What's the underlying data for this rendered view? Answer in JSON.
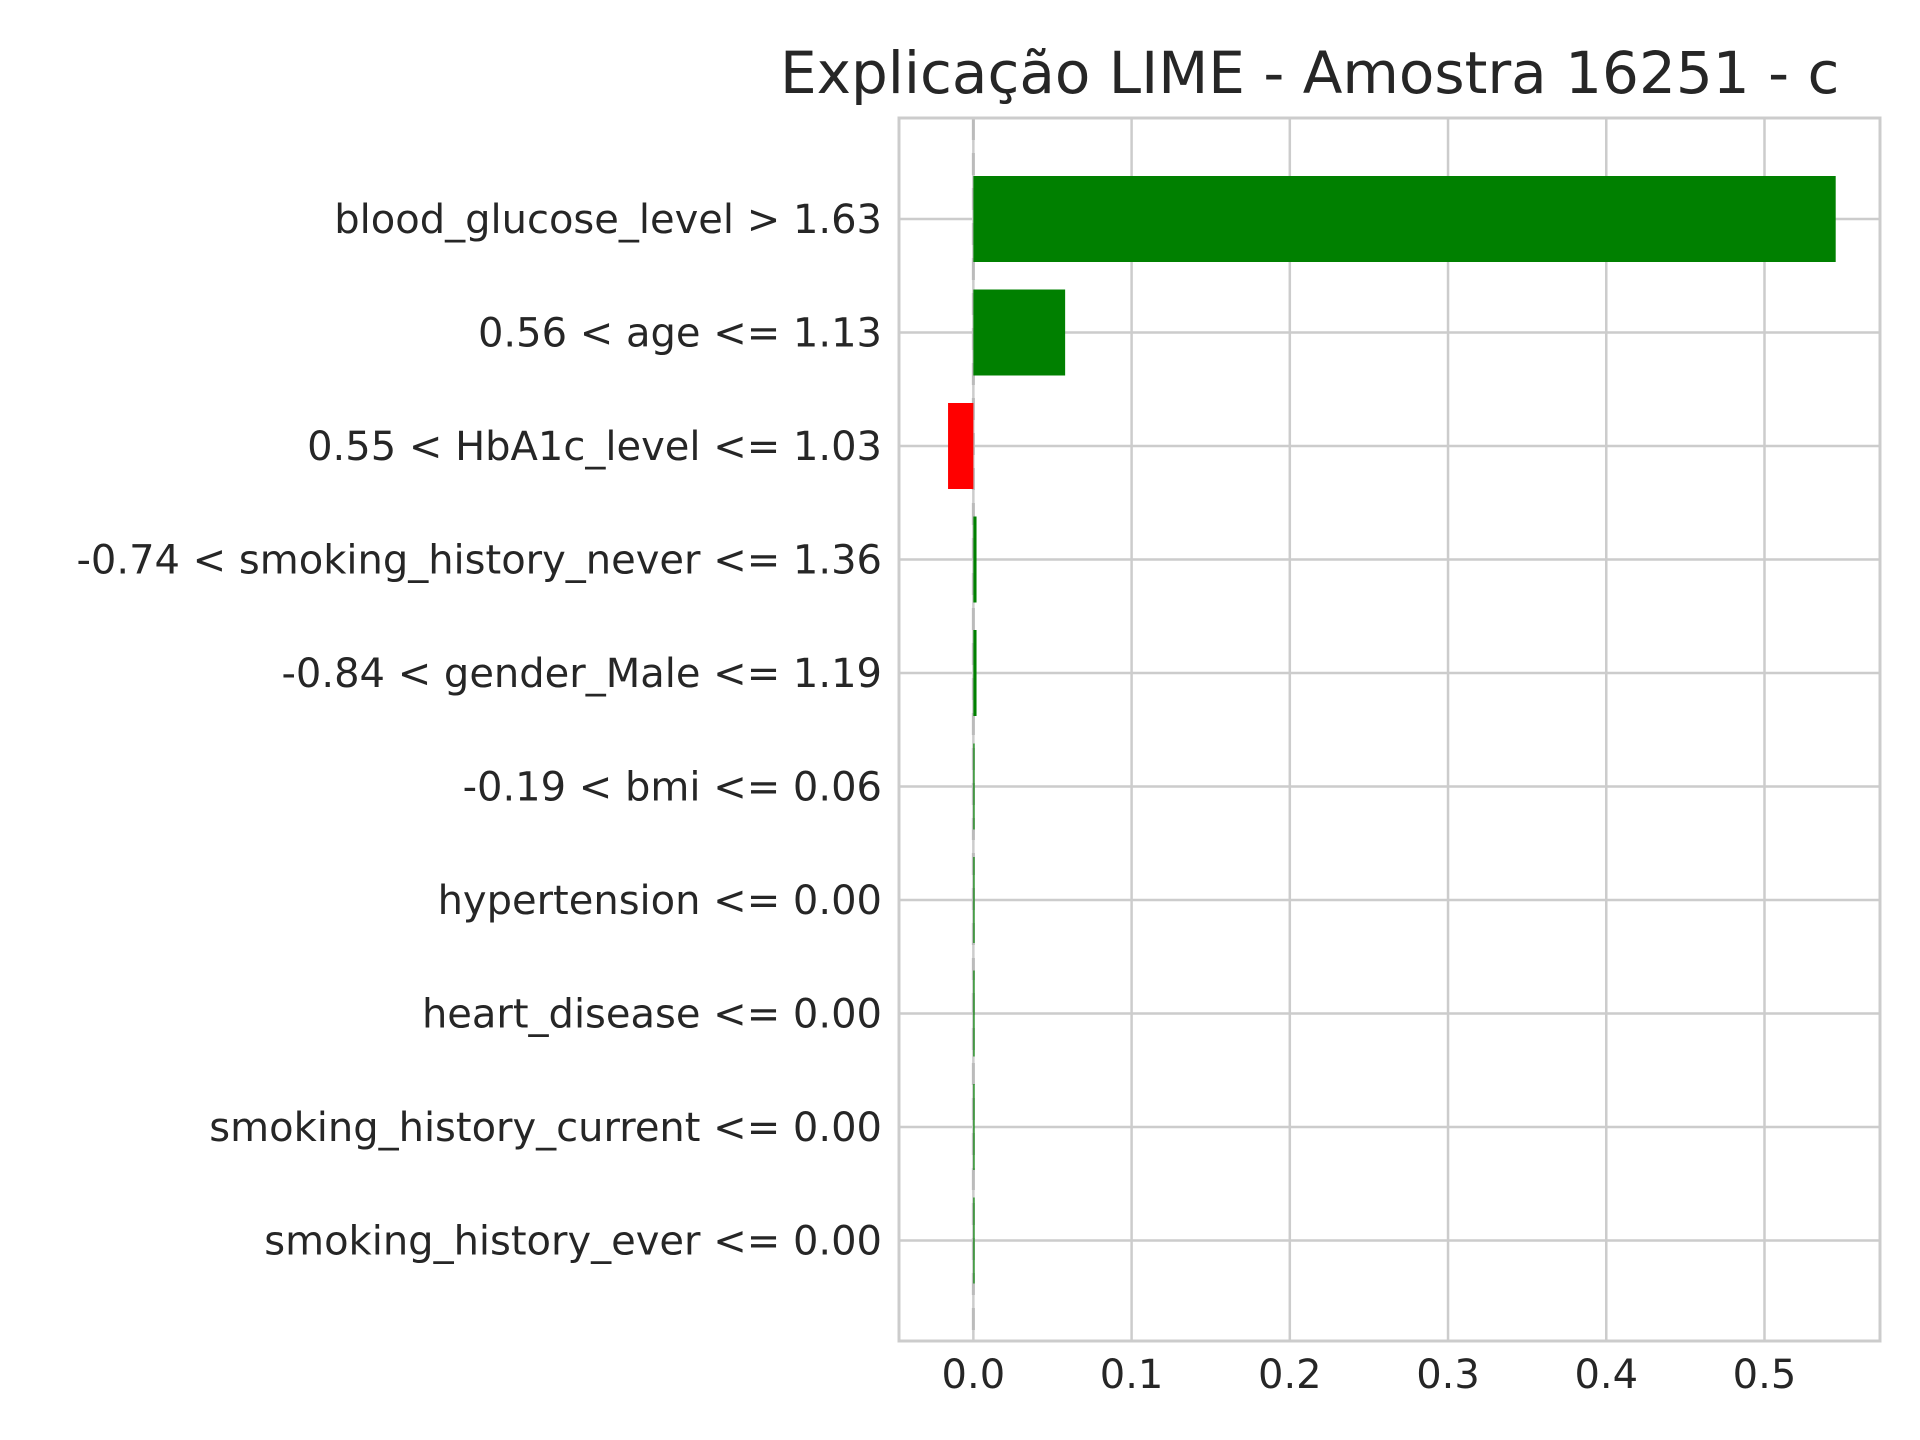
{
  "chart_data": {
    "type": "bar",
    "orientation": "horizontal",
    "title": "Explicação LIME - Amostra 16251 - c",
    "xlabel": "",
    "ylabel": "",
    "xlim": [
      -0.047,
      0.573
    ],
    "xticks": [
      0.0,
      0.1,
      0.2,
      0.3,
      0.4,
      0.5
    ],
    "xtick_labels": [
      "0.0",
      "0.1",
      "0.2",
      "0.3",
      "0.4",
      "0.5"
    ],
    "grid": true,
    "zero_line": "dashed",
    "categories": [
      "blood_glucose_level > 1.63",
      "0.56 < age <= 1.13",
      "0.55 < HbA1c_level <= 1.03",
      "-0.74 < smoking_history_never <= 1.36",
      "-0.84 < gender_Male <= 1.19",
      "-0.19 < bmi <= 0.06",
      "hypertension <= 0.00",
      "heart_disease <= 0.00",
      "smoking_history_current <= 0.00",
      "smoking_history_ever <= 0.00"
    ],
    "values": [
      0.545,
      0.058,
      -0.016,
      0.002,
      0.002,
      0.0005,
      0.0003,
      0.0002,
      0.0002,
      0.0001
    ],
    "colors": {
      "positive": "#008000",
      "negative": "#ff0000"
    }
  }
}
